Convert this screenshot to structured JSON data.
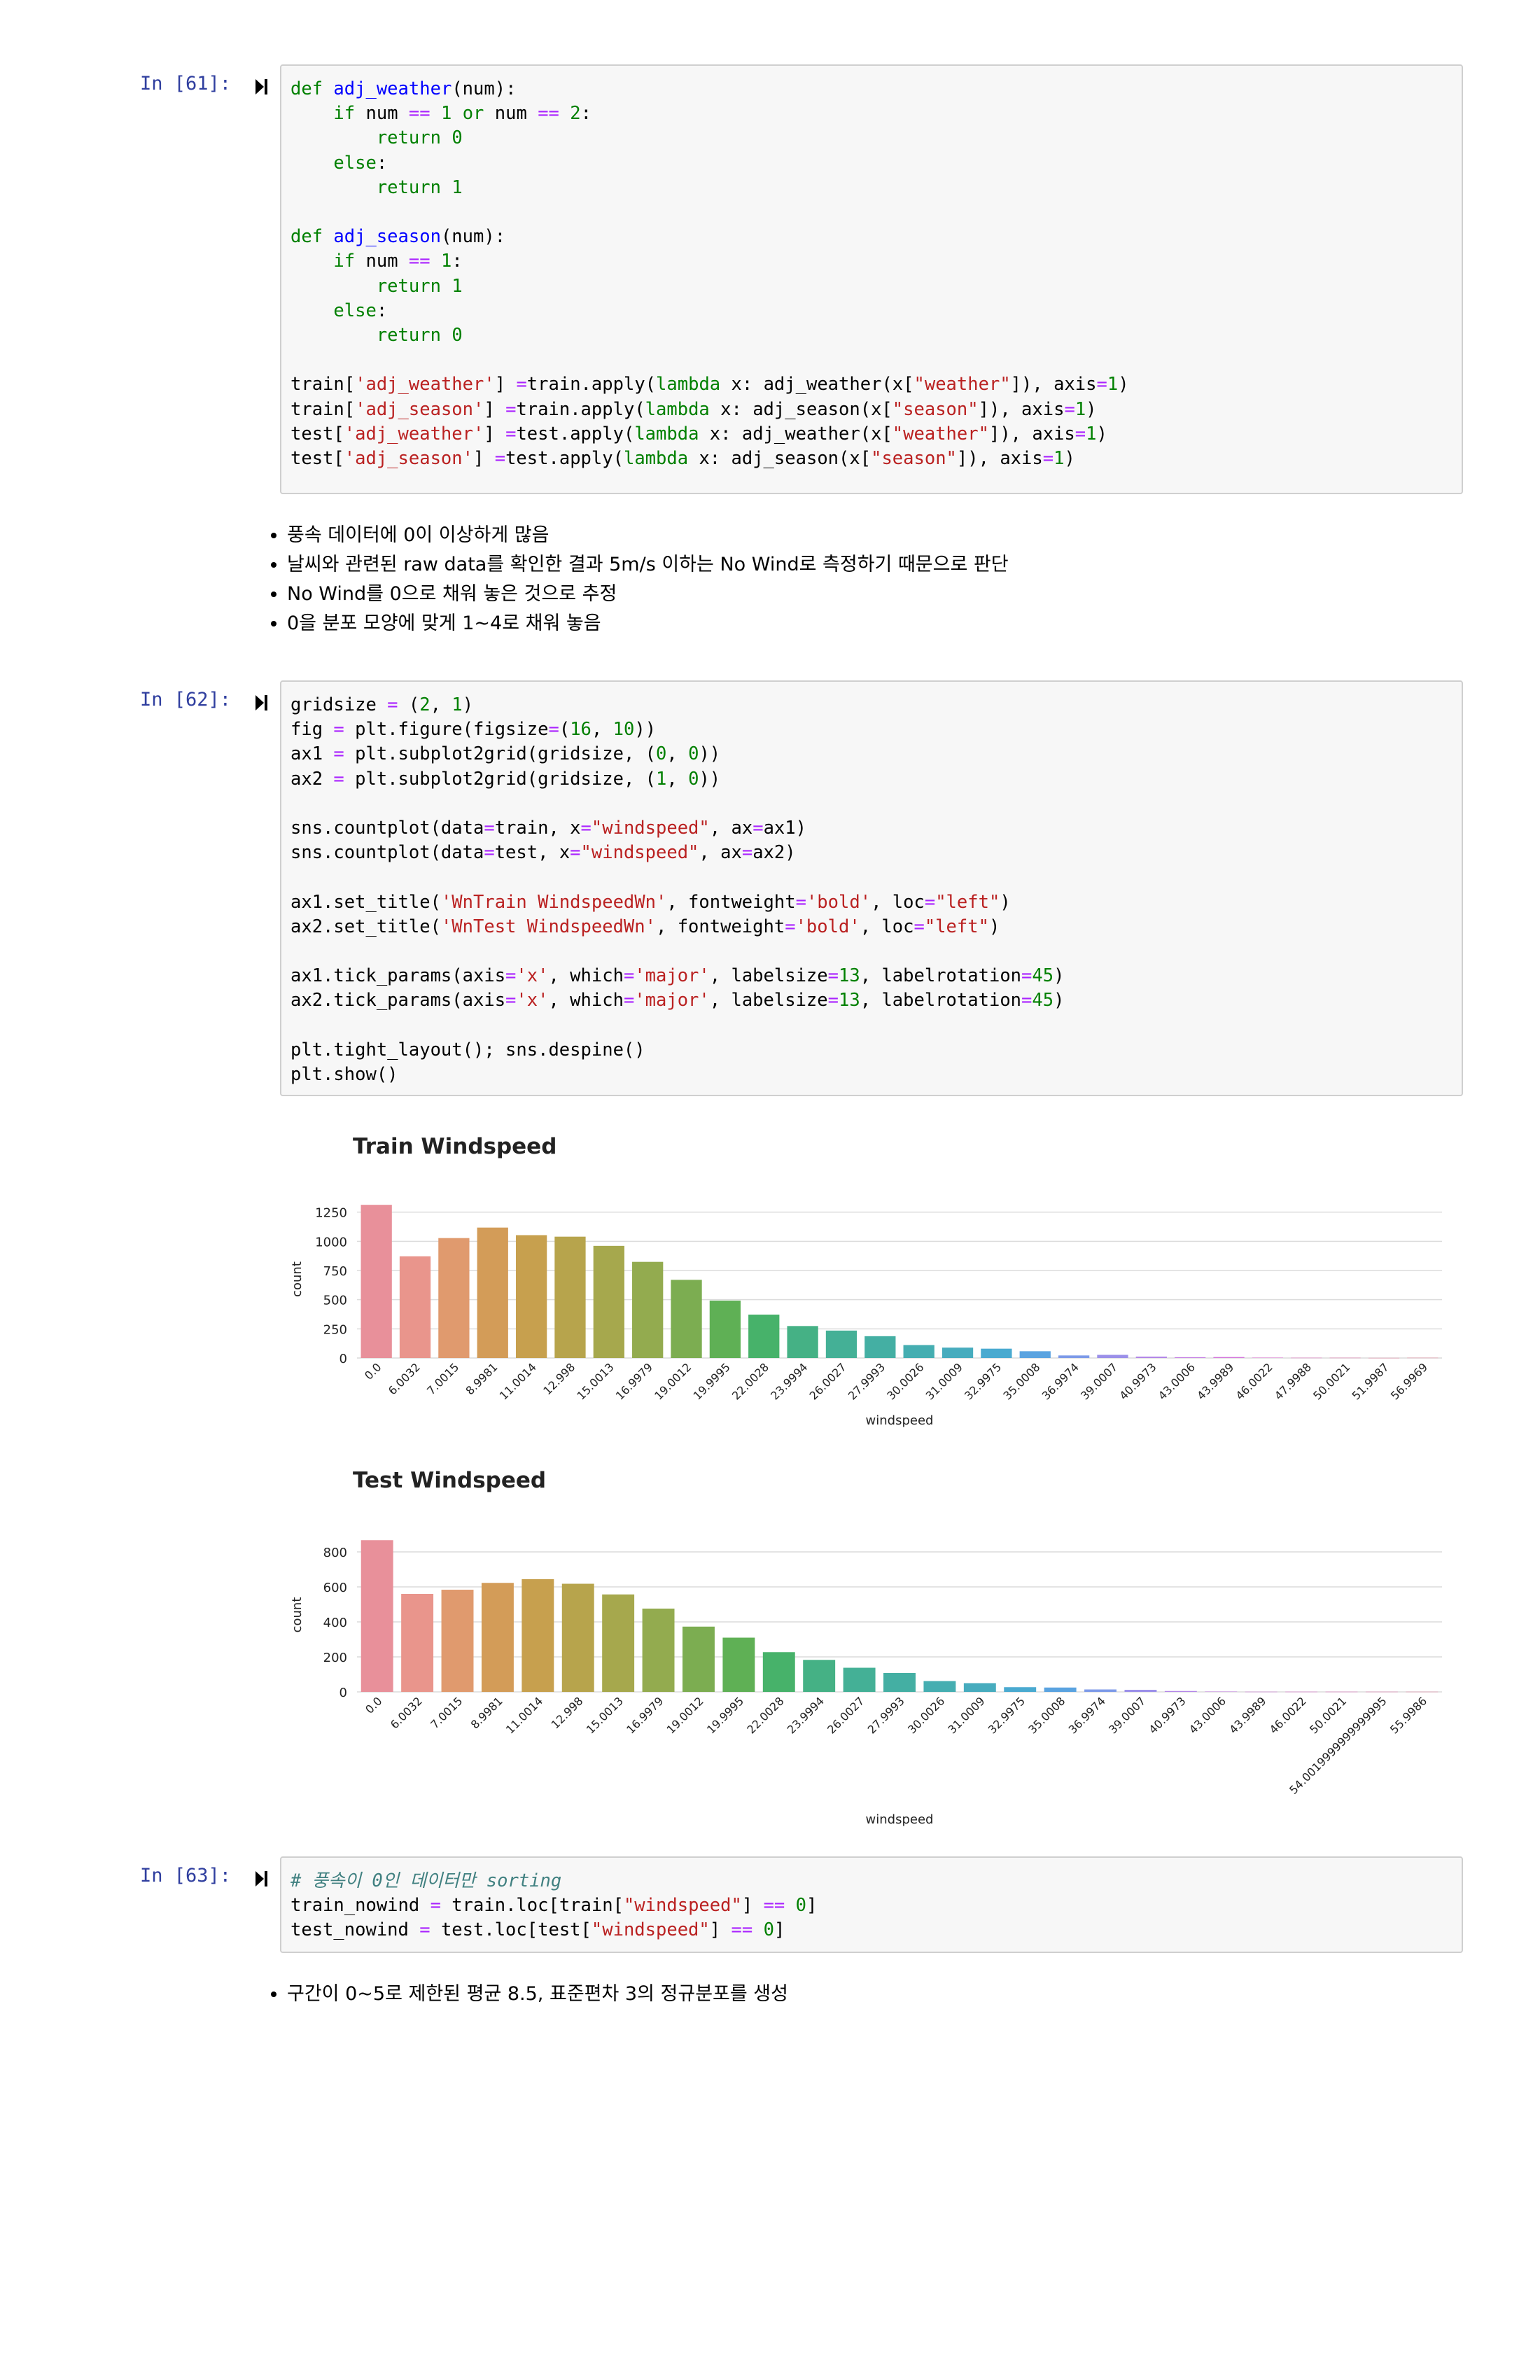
{
  "cells": [
    {
      "prompt": "In [61]:",
      "lines": [
        [
          [
            "k",
            "def "
          ],
          [
            "f",
            "adj_weather"
          ],
          [
            "",
            "(num):"
          ]
        ],
        [
          [
            "",
            "    "
          ],
          [
            "k",
            "if"
          ],
          [
            "",
            " num "
          ],
          [
            "o",
            "=="
          ],
          [
            "",
            " "
          ],
          [
            "n",
            "1"
          ],
          [
            "",
            " "
          ],
          [
            "k",
            "or"
          ],
          [
            "",
            " num "
          ],
          [
            "o",
            "=="
          ],
          [
            "",
            " "
          ],
          [
            "n",
            "2"
          ],
          [
            "",
            ":"
          ]
        ],
        [
          [
            "",
            "        "
          ],
          [
            "k",
            "return"
          ],
          [
            "",
            " "
          ],
          [
            "n",
            "0"
          ]
        ],
        [
          [
            "",
            "    "
          ],
          [
            "k",
            "else"
          ],
          [
            "",
            ":"
          ]
        ],
        [
          [
            "",
            "        "
          ],
          [
            "k",
            "return"
          ],
          [
            "",
            " "
          ],
          [
            "n",
            "1"
          ]
        ],
        [
          [
            "",
            ""
          ]
        ],
        [
          [
            "k",
            "def "
          ],
          [
            "f",
            "adj_season"
          ],
          [
            "",
            "(num):"
          ]
        ],
        [
          [
            "",
            "    "
          ],
          [
            "k",
            "if"
          ],
          [
            "",
            " num "
          ],
          [
            "o",
            "=="
          ],
          [
            "",
            " "
          ],
          [
            "n",
            "1"
          ],
          [
            "",
            ":"
          ]
        ],
        [
          [
            "",
            "        "
          ],
          [
            "k",
            "return"
          ],
          [
            "",
            " "
          ],
          [
            "n",
            "1"
          ]
        ],
        [
          [
            "",
            "    "
          ],
          [
            "k",
            "else"
          ],
          [
            "",
            ":"
          ]
        ],
        [
          [
            "",
            "        "
          ],
          [
            "k",
            "return"
          ],
          [
            "",
            " "
          ],
          [
            "n",
            "0"
          ]
        ],
        [
          [
            "",
            ""
          ]
        ],
        [
          [
            "",
            "train["
          ],
          [
            "s",
            "'adj_weather'"
          ],
          [
            "",
            "] "
          ],
          [
            "o",
            "="
          ],
          [
            "",
            "train.apply("
          ],
          [
            "k",
            "lambda"
          ],
          [
            "",
            " x: adj_weather(x["
          ],
          [
            "s",
            "\"weather\""
          ],
          [
            "",
            "]), axis"
          ],
          [
            "o",
            "="
          ],
          [
            "n",
            "1"
          ],
          [
            "",
            ")"
          ]
        ],
        [
          [
            "",
            "train["
          ],
          [
            "s",
            "'adj_season'"
          ],
          [
            "",
            "] "
          ],
          [
            "o",
            "="
          ],
          [
            "",
            "train.apply("
          ],
          [
            "k",
            "lambda"
          ],
          [
            "",
            " x: adj_season(x["
          ],
          [
            "s",
            "\"season\""
          ],
          [
            "",
            "]), axis"
          ],
          [
            "o",
            "="
          ],
          [
            "n",
            "1"
          ],
          [
            "",
            ")"
          ]
        ],
        [
          [
            "",
            "test["
          ],
          [
            "s",
            "'adj_weather'"
          ],
          [
            "",
            "] "
          ],
          [
            "o",
            "="
          ],
          [
            "",
            "test.apply("
          ],
          [
            "k",
            "lambda"
          ],
          [
            "",
            " x: adj_weather(x["
          ],
          [
            "s",
            "\"weather\""
          ],
          [
            "",
            "]), axis"
          ],
          [
            "o",
            "="
          ],
          [
            "n",
            "1"
          ],
          [
            "",
            ")"
          ]
        ],
        [
          [
            "",
            "test["
          ],
          [
            "s",
            "'adj_season'"
          ],
          [
            "",
            "] "
          ],
          [
            "o",
            "="
          ],
          [
            "",
            "test.apply("
          ],
          [
            "k",
            "lambda"
          ],
          [
            "",
            " x: adj_season(x["
          ],
          [
            "s",
            "\"season\""
          ],
          [
            "",
            "]), axis"
          ],
          [
            "o",
            "="
          ],
          [
            "n",
            "1"
          ],
          [
            "",
            ")"
          ]
        ]
      ]
    },
    {
      "prompt": "In [62]:",
      "lines": [
        [
          [
            "",
            "gridsize "
          ],
          [
            "o",
            "="
          ],
          [
            "",
            " ("
          ],
          [
            "n",
            "2"
          ],
          [
            "",
            ", "
          ],
          [
            "n",
            "1"
          ],
          [
            "",
            ")"
          ]
        ],
        [
          [
            "",
            "fig "
          ],
          [
            "o",
            "="
          ],
          [
            "",
            " plt.figure(figsize"
          ],
          [
            "o",
            "="
          ],
          [
            "",
            "("
          ],
          [
            "n",
            "16"
          ],
          [
            "",
            ", "
          ],
          [
            "n",
            "10"
          ],
          [
            "",
            "))"
          ]
        ],
        [
          [
            "",
            "ax1 "
          ],
          [
            "o",
            "="
          ],
          [
            "",
            " plt.subplot2grid(gridsize, ("
          ],
          [
            "n",
            "0"
          ],
          [
            "",
            ", "
          ],
          [
            "n",
            "0"
          ],
          [
            "",
            "))"
          ]
        ],
        [
          [
            "",
            "ax2 "
          ],
          [
            "o",
            "="
          ],
          [
            "",
            " plt.subplot2grid(gridsize, ("
          ],
          [
            "n",
            "1"
          ],
          [
            "",
            ", "
          ],
          [
            "n",
            "0"
          ],
          [
            "",
            "))"
          ]
        ],
        [
          [
            "",
            ""
          ]
        ],
        [
          [
            "",
            "sns.countplot(data"
          ],
          [
            "o",
            "="
          ],
          [
            "",
            "train, x"
          ],
          [
            "o",
            "="
          ],
          [
            "s",
            "\"windspeed\""
          ],
          [
            "",
            ", ax"
          ],
          [
            "o",
            "="
          ],
          [
            "",
            "ax1)"
          ]
        ],
        [
          [
            "",
            "sns.countplot(data"
          ],
          [
            "o",
            "="
          ],
          [
            "",
            "test, x"
          ],
          [
            "o",
            "="
          ],
          [
            "s",
            "\"windspeed\""
          ],
          [
            "",
            ", ax"
          ],
          [
            "o",
            "="
          ],
          [
            "",
            "ax2)"
          ]
        ],
        [
          [
            "",
            ""
          ]
        ],
        [
          [
            "",
            "ax1.set_title("
          ],
          [
            "s",
            "'WnTrain WindspeedWn'"
          ],
          [
            "",
            ", fontweight"
          ],
          [
            "o",
            "="
          ],
          [
            "s",
            "'bold'"
          ],
          [
            "",
            ", loc"
          ],
          [
            "o",
            "="
          ],
          [
            "s",
            "\"left\""
          ],
          [
            "",
            ")"
          ]
        ],
        [
          [
            "",
            "ax2.set_title("
          ],
          [
            "s",
            "'WnTest WindspeedWn'"
          ],
          [
            "",
            ", fontweight"
          ],
          [
            "o",
            "="
          ],
          [
            "s",
            "'bold'"
          ],
          [
            "",
            ", loc"
          ],
          [
            "o",
            "="
          ],
          [
            "s",
            "\"left\""
          ],
          [
            "",
            ")"
          ]
        ],
        [
          [
            "",
            ""
          ]
        ],
        [
          [
            "",
            "ax1.tick_params(axis"
          ],
          [
            "o",
            "="
          ],
          [
            "s",
            "'x'"
          ],
          [
            "",
            ", which"
          ],
          [
            "o",
            "="
          ],
          [
            "s",
            "'major'"
          ],
          [
            "",
            ", labelsize"
          ],
          [
            "o",
            "="
          ],
          [
            "n",
            "13"
          ],
          [
            "",
            ", labelrotation"
          ],
          [
            "o",
            "="
          ],
          [
            "n",
            "45"
          ],
          [
            "",
            ")"
          ]
        ],
        [
          [
            "",
            "ax2.tick_params(axis"
          ],
          [
            "o",
            "="
          ],
          [
            "s",
            "'x'"
          ],
          [
            "",
            ", which"
          ],
          [
            "o",
            "="
          ],
          [
            "s",
            "'major'"
          ],
          [
            "",
            ", labelsize"
          ],
          [
            "o",
            "="
          ],
          [
            "n",
            "13"
          ],
          [
            "",
            ", labelrotation"
          ],
          [
            "o",
            "="
          ],
          [
            "n",
            "45"
          ],
          [
            "",
            ")"
          ]
        ],
        [
          [
            "",
            ""
          ]
        ],
        [
          [
            "",
            "plt.tight_layout(); sns.despine()"
          ]
        ],
        [
          [
            "",
            "plt.show()"
          ]
        ]
      ]
    },
    {
      "prompt": "In [63]:",
      "lines": [
        [
          [
            "c",
            "# 풍속이 0인 데이터만 sorting"
          ]
        ],
        [
          [
            "",
            "train_nowind "
          ],
          [
            "o",
            "="
          ],
          [
            "",
            " train.loc[train["
          ],
          [
            "s",
            "\"windspeed\""
          ],
          [
            "",
            "] "
          ],
          [
            "o",
            "=="
          ],
          [
            "",
            " "
          ],
          [
            "n",
            "0"
          ],
          [
            "",
            "]"
          ]
        ],
        [
          [
            "",
            "test_nowind "
          ],
          [
            "o",
            "="
          ],
          [
            "",
            " test.loc[test["
          ],
          [
            "s",
            "\"windspeed\""
          ],
          [
            "",
            "] "
          ],
          [
            "o",
            "=="
          ],
          [
            "",
            " "
          ],
          [
            "n",
            "0"
          ],
          [
            "",
            "]"
          ]
        ]
      ]
    }
  ],
  "notes1": [
    "풍속 데이터에 0이 이상하게 많음",
    "날씨와 관련된 raw data를 확인한 결과 5m/s 이하는 No Wind로 측정하기 때문으로 판단",
    "No Wind를 0으로 채워 놓은 것으로 추정",
    "0을 분포 모양에 맞게 1~4로 채워 놓음"
  ],
  "notes2": [
    "구간이 0~5로 제한된 평균 8.5, 표준편차 3의 정규분포를 생성"
  ],
  "colors": {
    "code_keyword": "#008000",
    "code_string": "#ba2121",
    "code_function": "#0000ff",
    "code_operator": "#aa22ff",
    "prompt": "#303f9f"
  },
  "chart_data": [
    {
      "type": "bar",
      "title": "Train Windspeed",
      "xlabel": "windspeed",
      "ylabel": "count",
      "ylim": [
        0,
        1350
      ],
      "yticks": [
        0,
        250,
        500,
        750,
        1000,
        1250
      ],
      "grid": true,
      "categories": [
        "0.0",
        "6.0032",
        "7.0015",
        "8.9981",
        "11.0014",
        "12.998",
        "15.0013",
        "16.9979",
        "19.0012",
        "19.9995",
        "22.0028",
        "23.9994",
        "26.0027",
        "27.9993",
        "30.0026",
        "31.0009",
        "32.9975",
        "35.0008",
        "36.9974",
        "39.0007",
        "40.9973",
        "43.0006",
        "43.9989",
        "46.0022",
        "47.9988",
        "50.0021",
        "51.9987",
        "56.9969"
      ],
      "values": [
        1313,
        872,
        1028,
        1118,
        1053,
        1040,
        961,
        824,
        670,
        492,
        372,
        274,
        235,
        187,
        111,
        89,
        80,
        58,
        22,
        27,
        12,
        7,
        8,
        3,
        2,
        2,
        1,
        2
      ]
    },
    {
      "type": "bar",
      "title": "Test Windspeed",
      "xlabel": "windspeed",
      "ylabel": "count",
      "ylim": [
        0,
        880
      ],
      "yticks": [
        0,
        200,
        400,
        600,
        800
      ],
      "grid": true,
      "categories": [
        "0.0",
        "6.0032",
        "7.0015",
        "8.9981",
        "11.0014",
        "12.998",
        "15.0013",
        "16.9979",
        "19.0012",
        "19.9995",
        "22.0028",
        "23.9994",
        "26.0027",
        "27.9993",
        "30.0026",
        "31.0009",
        "32.9975",
        "35.0008",
        "36.9974",
        "39.0007",
        "40.9973",
        "43.0006",
        "43.9989",
        "46.0022",
        "50.0021",
        "54.0019999999999995",
        "55.9986"
      ],
      "values": [
        867,
        560,
        584,
        623,
        644,
        618,
        557,
        476,
        373,
        310,
        227,
        183,
        138,
        108,
        62,
        50,
        27,
        25,
        14,
        12,
        5,
        2,
        1,
        1,
        1,
        1,
        1
      ]
    }
  ]
}
